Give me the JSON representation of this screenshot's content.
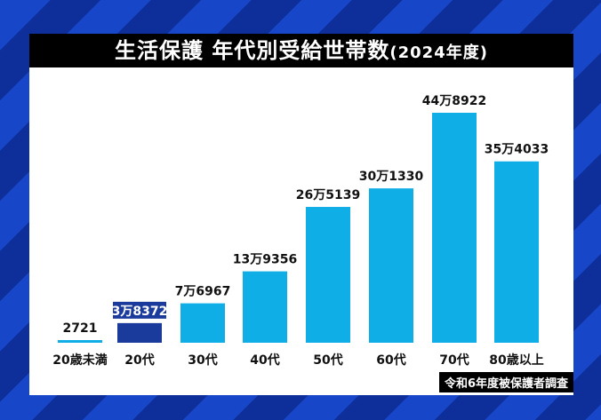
{
  "title": "生活保護 年代別受給世帯数",
  "subtitle": "(2024年度)",
  "source": "令和6年度被保護者調査",
  "colors": {
    "bar": "#10aee6",
    "highlight": "#1a3a9c",
    "background": "#1747c8"
  },
  "chart_data": {
    "type": "bar",
    "title": "生活保護 年代別受給世帯数(2024年度)",
    "categories": [
      "20歳未満",
      "20代",
      "30代",
      "40代",
      "50代",
      "60代",
      "70代",
      "80歳以上"
    ],
    "values": [
      2721,
      38372,
      76967,
      139356,
      265139,
      301330,
      448922,
      354033
    ],
    "data_labels": [
      "2721",
      "3万8372",
      "7万6967",
      "13万9356",
      "26万5139",
      "30万1330",
      "44万8922",
      "35万4033"
    ],
    "highlight_index": 1,
    "grid": false
  }
}
